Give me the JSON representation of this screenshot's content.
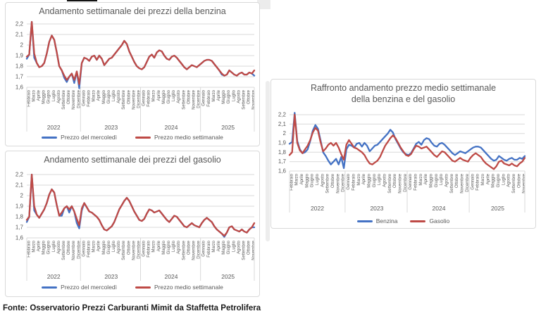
{
  "page": {
    "footer": "Fonte: Osservatorio Prezzi Carburanti Mimit da Staffetta Petrolifera"
  },
  "colors": {
    "blue": "#4472C4",
    "red": "#BE4A46",
    "grid": "#D9D9D9",
    "axis_text": "#595959",
    "title_text": "#595959",
    "panel_border": "#D9D9D9"
  },
  "y_axis": {
    "min": 1.6,
    "max": 2.2,
    "ticks": [
      {
        "t": "2,2",
        "v": 2.2
      },
      {
        "t": "2,1",
        "v": 2.1
      },
      {
        "t": "2",
        "v": 2.0
      },
      {
        "t": "1,9",
        "v": 1.9
      },
      {
        "t": "1,8",
        "v": 1.8
      },
      {
        "t": "1,7",
        "v": 1.7
      },
      {
        "t": "1,6",
        "v": 1.6
      }
    ]
  },
  "x_axis": {
    "years": [
      {
        "label": "2022",
        "months": [
          "Febbraio",
          "Marzo",
          "Aprile",
          "Maggio",
          "Giugno",
          "Luglio",
          "Agosto",
          "Settembre",
          "Ottobre",
          "Novembre",
          "Dicembre"
        ]
      },
      {
        "label": "2023",
        "months": [
          "Gennaio",
          "Febbraio",
          "Marzo",
          "Aprile",
          "Maggio",
          "Giugno",
          "Luglio",
          "Agosto",
          "Settembre",
          "Ottobre",
          "Novembre",
          "Dicembre"
        ]
      },
      {
        "label": "2024",
        "months": [
          "Gennaio",
          "Febbraio",
          "Marzo",
          "Aprile",
          "Maggio",
          "Giugno",
          "Luglio",
          "Agosto",
          "Settembre",
          "Ottobre",
          "Novembre",
          "Dicembre"
        ]
      },
      {
        "label": "2025",
        "months": [
          "Gennaio",
          "Febbraio",
          "Marzo",
          "Aprile",
          "Maggio",
          "Giugno",
          "Luglio",
          "Agosto",
          "Settembre",
          "Ottobre",
          "Novembre"
        ]
      }
    ]
  },
  "series_values": {
    "benzina_mercoledi": [
      1.87,
      1.91,
      2.22,
      1.88,
      1.83,
      1.79,
      1.8,
      1.83,
      1.92,
      2.03,
      2.09,
      2.05,
      1.93,
      1.8,
      1.76,
      1.69,
      1.65,
      1.7,
      1.73,
      1.64,
      1.75,
      1.59,
      1.83,
      1.88,
      1.87,
      1.85,
      1.89,
      1.9,
      1.86,
      1.9,
      1.87,
      1.81,
      1.84,
      1.87,
      1.88,
      1.91,
      1.94,
      1.97,
      2.0,
      2.04,
      2.01,
      1.94,
      1.89,
      1.84,
      1.8,
      1.78,
      1.77,
      1.79,
      1.84,
      1.89,
      1.91,
      1.88,
      1.93,
      1.95,
      1.94,
      1.9,
      1.87,
      1.86,
      1.89,
      1.9,
      1.88,
      1.85,
      1.82,
      1.79,
      1.77,
      1.79,
      1.81,
      1.8,
      1.79,
      1.81,
      1.83,
      1.85,
      1.86,
      1.86,
      1.85,
      1.82,
      1.79,
      1.76,
      1.72,
      1.71,
      1.72,
      1.76,
      1.74,
      1.72,
      1.71,
      1.73,
      1.74,
      1.72,
      1.72,
      1.74,
      1.73,
      1.71
    ],
    "benzina_medio": [
      1.89,
      1.91,
      2.22,
      1.92,
      1.83,
      1.79,
      1.8,
      1.83,
      1.92,
      2.03,
      2.09,
      2.05,
      1.93,
      1.8,
      1.76,
      1.71,
      1.67,
      1.7,
      1.73,
      1.67,
      1.75,
      1.63,
      1.83,
      1.88,
      1.87,
      1.85,
      1.89,
      1.9,
      1.86,
      1.9,
      1.87,
      1.81,
      1.84,
      1.87,
      1.88,
      1.91,
      1.94,
      1.97,
      2.0,
      2.04,
      2.01,
      1.94,
      1.89,
      1.84,
      1.8,
      1.78,
      1.77,
      1.79,
      1.84,
      1.89,
      1.91,
      1.88,
      1.93,
      1.95,
      1.94,
      1.9,
      1.87,
      1.86,
      1.89,
      1.9,
      1.88,
      1.85,
      1.82,
      1.79,
      1.77,
      1.79,
      1.81,
      1.8,
      1.79,
      1.81,
      1.83,
      1.85,
      1.86,
      1.86,
      1.85,
      1.82,
      1.79,
      1.76,
      1.73,
      1.71,
      1.72,
      1.76,
      1.74,
      1.72,
      1.71,
      1.73,
      1.74,
      1.72,
      1.72,
      1.74,
      1.73,
      1.76
    ],
    "gasolio_mercoledi": [
      1.75,
      1.8,
      2.2,
      1.86,
      1.82,
      1.79,
      1.83,
      1.87,
      1.93,
      2.01,
      2.06,
      2.03,
      1.91,
      1.81,
      1.81,
      1.88,
      1.9,
      1.84,
      1.9,
      1.85,
      1.74,
      1.69,
      1.86,
      1.93,
      1.89,
      1.85,
      1.84,
      1.82,
      1.8,
      1.77,
      1.72,
      1.68,
      1.67,
      1.69,
      1.71,
      1.75,
      1.81,
      1.87,
      1.91,
      1.95,
      1.98,
      1.95,
      1.9,
      1.85,
      1.81,
      1.77,
      1.76,
      1.78,
      1.83,
      1.87,
      1.86,
      1.84,
      1.85,
      1.86,
      1.83,
      1.8,
      1.77,
      1.75,
      1.78,
      1.81,
      1.8,
      1.77,
      1.74,
      1.71,
      1.7,
      1.72,
      1.74,
      1.72,
      1.71,
      1.7,
      1.74,
      1.77,
      1.79,
      1.77,
      1.75,
      1.71,
      1.68,
      1.66,
      1.64,
      1.61,
      1.65,
      1.7,
      1.71,
      1.68,
      1.67,
      1.66,
      1.68,
      1.66,
      1.65,
      1.68,
      1.7,
      1.7
    ],
    "gasolio_medio": [
      1.77,
      1.8,
      2.2,
      1.9,
      1.82,
      1.79,
      1.83,
      1.87,
      1.93,
      2.01,
      2.06,
      2.03,
      1.91,
      1.81,
      1.84,
      1.88,
      1.9,
      1.87,
      1.9,
      1.85,
      1.78,
      1.72,
      1.88,
      1.93,
      1.89,
      1.85,
      1.84,
      1.82,
      1.8,
      1.77,
      1.72,
      1.68,
      1.67,
      1.69,
      1.71,
      1.75,
      1.81,
      1.87,
      1.91,
      1.95,
      1.98,
      1.95,
      1.9,
      1.85,
      1.81,
      1.77,
      1.76,
      1.78,
      1.83,
      1.87,
      1.86,
      1.84,
      1.85,
      1.86,
      1.83,
      1.8,
      1.77,
      1.75,
      1.78,
      1.81,
      1.8,
      1.77,
      1.74,
      1.71,
      1.7,
      1.72,
      1.74,
      1.72,
      1.71,
      1.7,
      1.74,
      1.77,
      1.79,
      1.77,
      1.75,
      1.71,
      1.68,
      1.66,
      1.64,
      1.62,
      1.65,
      1.7,
      1.71,
      1.68,
      1.67,
      1.66,
      1.68,
      1.66,
      1.65,
      1.68,
      1.7,
      1.74
    ]
  },
  "chart_data": [
    {
      "type": "line",
      "title": "Andamento settimanale dei prezzi della benzina",
      "xlabel": "",
      "ylabel": "",
      "ylim": [
        1.6,
        2.2
      ],
      "grid": true,
      "legend_position": "bottom",
      "series": [
        {
          "name": "Prezzo del mercoledì",
          "color": "blue",
          "values_ref": "benzina_mercoledi"
        },
        {
          "name": "Prezzo medio settimanale",
          "color": "red",
          "values_ref": "benzina_medio"
        }
      ]
    },
    {
      "type": "line",
      "title": "Andamento settimanale dei prezzi del gasolio",
      "xlabel": "",
      "ylabel": "",
      "ylim": [
        1.6,
        2.2
      ],
      "grid": true,
      "legend_position": "bottom",
      "series": [
        {
          "name": "Prezzo del mercoledì",
          "color": "blue",
          "values_ref": "gasolio_mercoledi"
        },
        {
          "name": "Prezzo medio settimanale",
          "color": "red",
          "values_ref": "gasolio_medio"
        }
      ]
    },
    {
      "type": "line",
      "title": "Raffronto andamento prezzo medio settimanale",
      "title2": "della benzina e del gasolio",
      "xlabel": "",
      "ylabel": "",
      "ylim": [
        1.6,
        2.2
      ],
      "grid": true,
      "legend_position": "bottom",
      "series": [
        {
          "name": "Benzina",
          "color": "blue",
          "values_ref": "benzina_medio"
        },
        {
          "name": "Gasolio",
          "color": "red",
          "values_ref": "gasolio_medio"
        }
      ]
    }
  ]
}
